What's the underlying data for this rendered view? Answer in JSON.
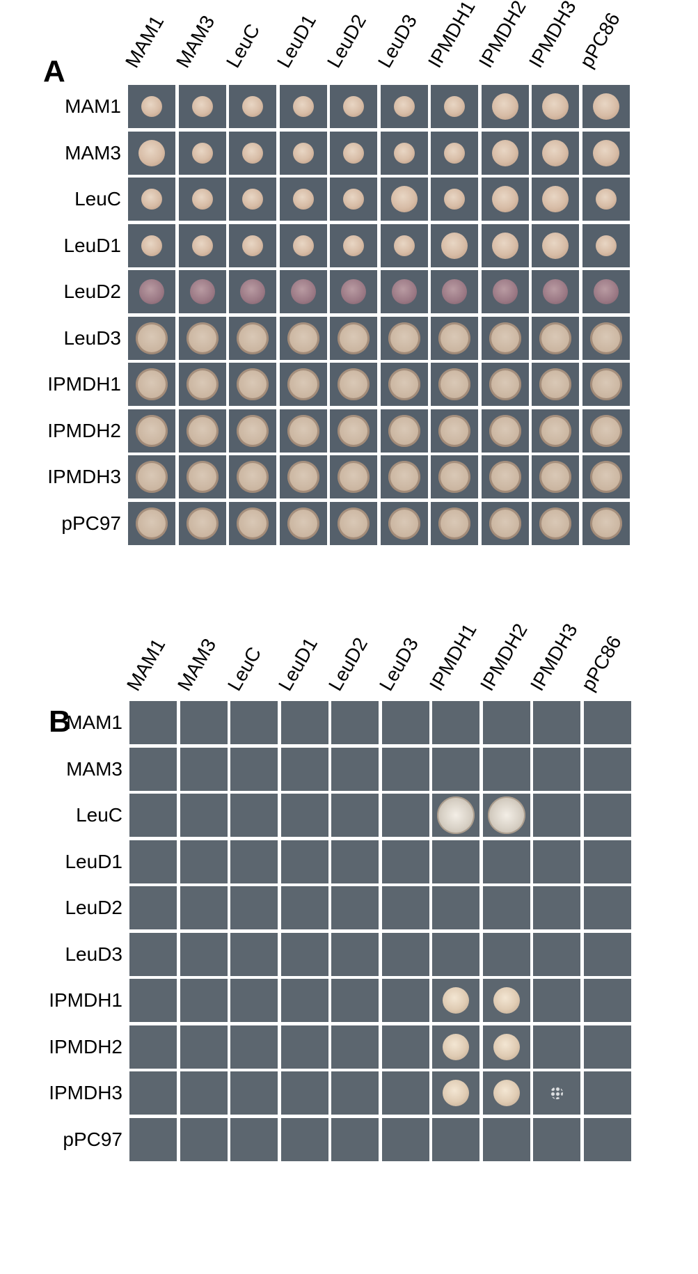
{
  "panels": [
    {
      "letter": "A",
      "columns": [
        "MAM1",
        "MAM3",
        "LeuC",
        "LeuD1",
        "LeuD2",
        "LeuD3",
        "IPMDH1",
        "IPMDH2",
        "IPMDH3",
        "pPC86"
      ],
      "rows": [
        "MAM1",
        "MAM3",
        "LeuC",
        "LeuD1",
        "LeuD2",
        "LeuD3",
        "IPMDH1",
        "IPMDH2",
        "IPMDH3",
        "pPC97"
      ],
      "growth": [
        [
          "small",
          "small",
          "small",
          "small",
          "small",
          "small",
          "small",
          "medium",
          "medium",
          "medium"
        ],
        [
          "medium",
          "small",
          "small",
          "small",
          "small",
          "small",
          "small",
          "medium",
          "medium",
          "medium"
        ],
        [
          "small",
          "small",
          "small",
          "small",
          "small",
          "medium",
          "small",
          "medium",
          "medium",
          "small"
        ],
        [
          "small",
          "small",
          "small",
          "small",
          "small",
          "small",
          "medium",
          "medium",
          "medium",
          "small"
        ],
        [
          "dark",
          "dark",
          "dark",
          "dark",
          "dark",
          "dark",
          "dark",
          "dark",
          "dark",
          "dark"
        ],
        [
          "big",
          "big",
          "big",
          "big",
          "big",
          "big",
          "big",
          "big",
          "big",
          "big"
        ],
        [
          "big",
          "big",
          "big",
          "big",
          "big",
          "big",
          "big",
          "big",
          "big",
          "big"
        ],
        [
          "big",
          "big",
          "big",
          "big",
          "big",
          "big",
          "big",
          "big",
          "big",
          "big"
        ],
        [
          "big",
          "big",
          "big",
          "big",
          "big",
          "big",
          "big",
          "big",
          "big",
          "big"
        ],
        [
          "big",
          "big",
          "big",
          "big",
          "big",
          "big",
          "big",
          "big",
          "big",
          "big"
        ]
      ]
    },
    {
      "letter": "B",
      "columns": [
        "MAM1",
        "MAM3",
        "LeuC",
        "LeuD1",
        "LeuD2",
        "LeuD3",
        "IPMDH1",
        "IPMDH2",
        "IPMDH3",
        "pPC86"
      ],
      "rows": [
        "MAM1",
        "MAM3",
        "LeuC",
        "LeuD1",
        "LeuD2",
        "LeuD3",
        "IPMDH1",
        "IPMDH2",
        "IPMDH3",
        "pPC97"
      ],
      "growth": [
        [
          "none",
          "none",
          "none",
          "none",
          "none",
          "none",
          "none",
          "none",
          "none",
          "none"
        ],
        [
          "none",
          "none",
          "none",
          "none",
          "none",
          "none",
          "none",
          "none",
          "none",
          "none"
        ],
        [
          "none",
          "none",
          "none",
          "none",
          "none",
          "none",
          "rough",
          "rough",
          "none",
          "none"
        ],
        [
          "none",
          "none",
          "none",
          "none",
          "none",
          "none",
          "none",
          "none",
          "none",
          "none"
        ],
        [
          "none",
          "none",
          "none",
          "none",
          "none",
          "none",
          "none",
          "none",
          "none",
          "none"
        ],
        [
          "none",
          "none",
          "none",
          "none",
          "none",
          "none",
          "none",
          "none",
          "none",
          "none"
        ],
        [
          "none",
          "none",
          "none",
          "none",
          "none",
          "none",
          "medium",
          "medium",
          "none",
          "none"
        ],
        [
          "none",
          "none",
          "none",
          "none",
          "none",
          "none",
          "medium",
          "medium",
          "none",
          "none"
        ],
        [
          "none",
          "none",
          "none",
          "none",
          "none",
          "none",
          "medium",
          "medium",
          "specks",
          "none"
        ],
        [
          "none",
          "none",
          "none",
          "none",
          "none",
          "none",
          "none",
          "none",
          "none",
          "none"
        ]
      ]
    }
  ]
}
